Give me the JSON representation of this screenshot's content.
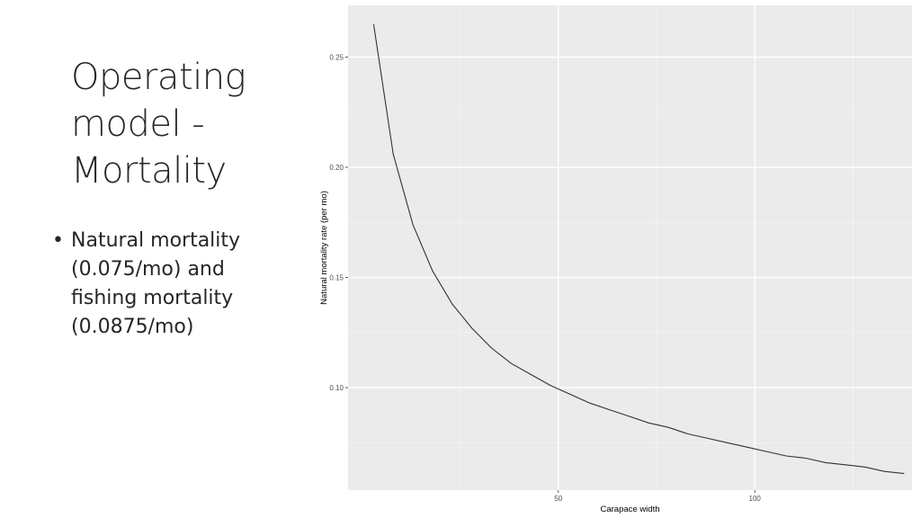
{
  "slide": {
    "title": "Operating\nmodel -\nMortality",
    "bullets": [
      "Natural mortality\n(0.075/mo) and\nfishing mortality\n(0.0875/mo)"
    ]
  },
  "colors": {
    "panel_background": "#ebebeb",
    "major_grid": "#ffffff",
    "line": "#333333",
    "text": "#262626"
  },
  "chart_data": {
    "type": "line",
    "xlabel": "Carapace width",
    "ylabel": "Natural mortality rate (per mo)",
    "xlim": [
      -3.5,
      140
    ],
    "ylim": [
      0.0535,
      0.2735
    ],
    "x_ticks": [
      50,
      100
    ],
    "x_tick_labels": [
      "50",
      "100"
    ],
    "y_ticks": [
      0.1,
      0.15,
      0.2,
      0.25
    ],
    "y_tick_labels": [
      "0.10",
      "0.15",
      "0.20",
      "0.25"
    ],
    "grid": true,
    "legend": "none",
    "series": [
      {
        "x": [
          3,
          8,
          13,
          18,
          23,
          28,
          33,
          38,
          43,
          48,
          53,
          58,
          63,
          68,
          73,
          78,
          83,
          88,
          93,
          98,
          103,
          108,
          113,
          118,
          123,
          128,
          133,
          138
        ],
        "y": [
          0.265,
          0.206,
          0.174,
          0.153,
          0.138,
          0.127,
          0.118,
          0.111,
          0.106,
          0.101,
          0.097,
          0.093,
          0.09,
          0.087,
          0.084,
          0.082,
          0.079,
          0.077,
          0.075,
          0.073,
          0.071,
          0.069,
          0.068,
          0.066,
          0.065,
          0.064,
          0.062,
          0.061
        ]
      }
    ]
  }
}
